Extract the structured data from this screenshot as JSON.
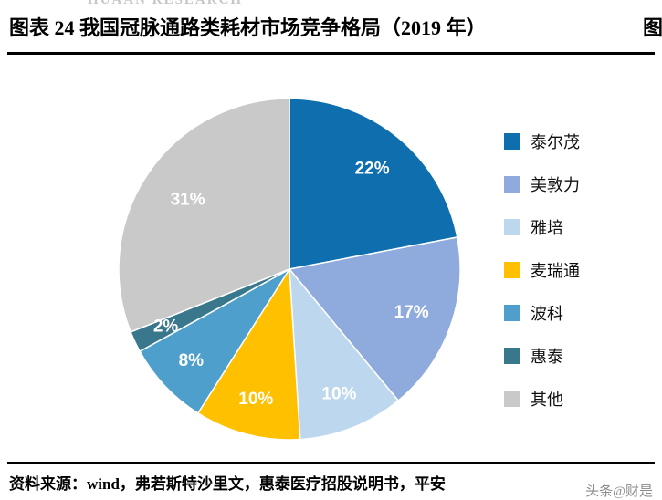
{
  "header": {
    "watermark_top": "HUAAN RESEARCH",
    "title": "图表 24 我国冠脉通路类耗材市场竞争格局（2019 年）",
    "right_fragment": "图"
  },
  "chart_data": {
    "type": "pie",
    "title": "我国冠脉通路类耗材市场竞争格局（2019 年）",
    "categories": [
      "泰尔茂",
      "美敦力",
      "雅培",
      "麦瑞通",
      "波科",
      "惠泰",
      "其他"
    ],
    "values": [
      22,
      17,
      10,
      10,
      8,
      2,
      31
    ],
    "labels": [
      "22%",
      "17%",
      "10%",
      "10%",
      "8%",
      "2%",
      "31%"
    ],
    "colors": [
      "#0E6EAE",
      "#8FAADC",
      "#BDD7EE",
      "#FFC000",
      "#4E9FCB",
      "#38778C",
      "#C9C9C9"
    ],
    "unit": "percent",
    "legend_position": "right",
    "start_angle_deg": 0,
    "direction": "clockwise"
  },
  "footer": {
    "source": "资料来源：wind，弗若斯特沙里文，惠泰医疗招股说明书，平安",
    "watermark": "头条@财是"
  }
}
